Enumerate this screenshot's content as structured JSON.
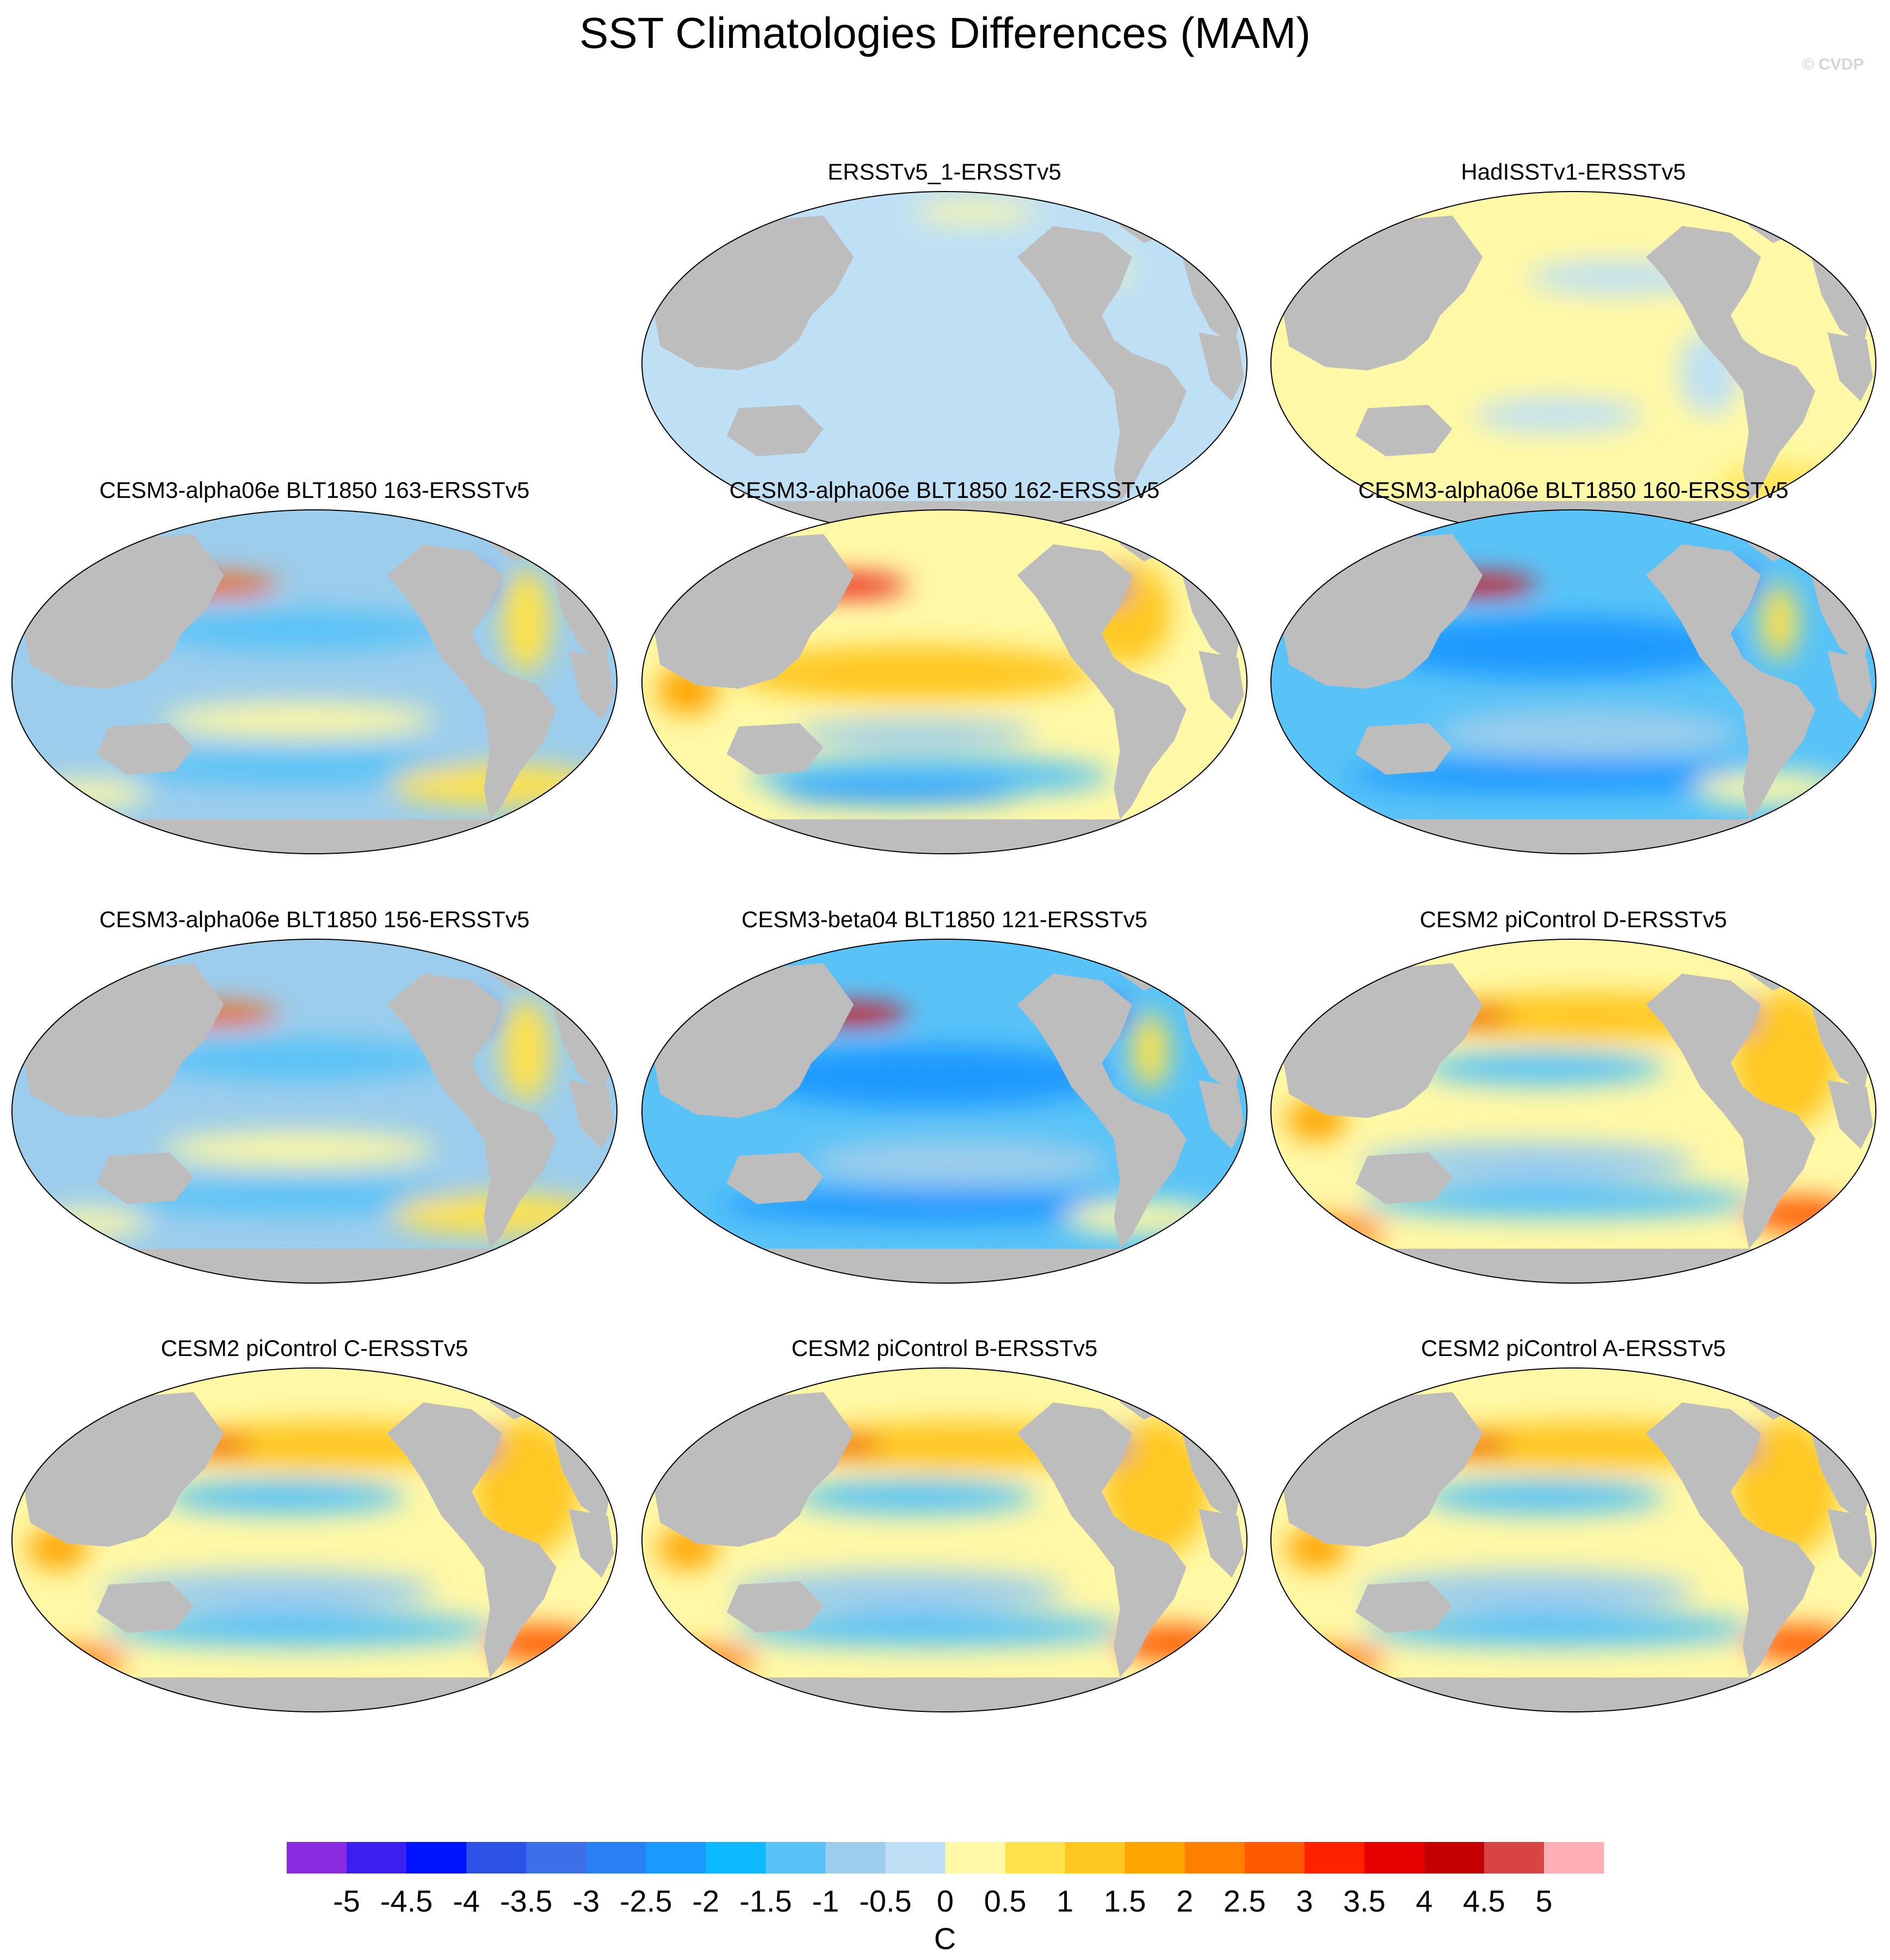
{
  "chart_data": {
    "type": "heatmap",
    "title": "SST Climatologies Differences (MAM)",
    "credit": "© CVDP",
    "projection": "Robinson global maps",
    "units": "C",
    "colorbar": {
      "ticks": [
        "-5",
        "-4.5",
        "-4",
        "-3.5",
        "-3",
        "-2.5",
        "-2",
        "-1.5",
        "-1",
        "-0.5",
        "0",
        "0.5",
        "1",
        "1.5",
        "2",
        "2.5",
        "3",
        "3.5",
        "4",
        "4.5",
        "5"
      ],
      "colors": [
        "#8a2be2",
        "#3a1ff0",
        "#0014ff",
        "#2c52e6",
        "#3c6fe8",
        "#2a7ff5",
        "#1a99ff",
        "#0dbaff",
        "#59c3f7",
        "#9ccdec",
        "#bfe0f4",
        "#fff8a6",
        "#ffe24c",
        "#ffc821",
        "#ffa500",
        "#ff8000",
        "#ff5a00",
        "#ff2200",
        "#e60000",
        "#c40000",
        "#d84444",
        "#ffb0b6"
      ]
    },
    "panels": [
      {
        "title": "ERSSTv5_1-ERSSTv5",
        "pattern": "uniform-cool",
        "bias_mean": -0.3
      },
      {
        "title": "HadISSTv1-ERSSTv5",
        "pattern": "uniform-warm",
        "bias_mean": 0.2
      },
      {
        "title": "CESM3-alpha06e BLT1850 163-ERSSTv5",
        "pattern": "cool",
        "bias_mean": -0.6
      },
      {
        "title": "CESM3-alpha06e BLT1850 162-ERSSTv5",
        "pattern": "warm-tropics",
        "bias_mean": 0.3
      },
      {
        "title": "CESM3-alpha06e BLT1850 160-ERSSTv5",
        "pattern": "cold",
        "bias_mean": -0.9
      },
      {
        "title": "CESM3-alpha06e BLT1850 156-ERSSTv5",
        "pattern": "cool",
        "bias_mean": -0.6
      },
      {
        "title": "CESM3-beta04 BLT1850 121-ERSSTv5",
        "pattern": "cold",
        "bias_mean": -0.9
      },
      {
        "title": "CESM2 piControl D-ERSSTv5",
        "pattern": "warm",
        "bias_mean": 0.7
      },
      {
        "title": "CESM2 piControl C-ERSSTv5",
        "pattern": "warm",
        "bias_mean": 0.7
      },
      {
        "title": "CESM2 piControl B-ERSSTv5",
        "pattern": "warm",
        "bias_mean": 0.7
      },
      {
        "title": "CESM2 piControl A-ERSSTv5",
        "pattern": "warm",
        "bias_mean": 0.7
      }
    ]
  }
}
